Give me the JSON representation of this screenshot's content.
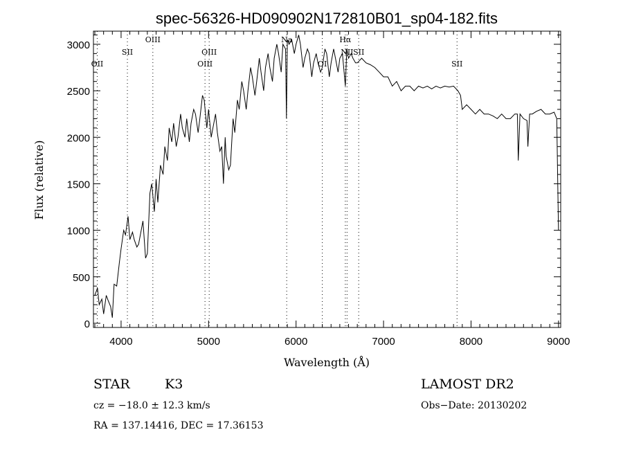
{
  "chart_data": {
    "type": "line",
    "title": "spec-56326-HD090902N172810B01_sp04-182.fits",
    "xlabel": "Wavelength (Å)",
    "ylabel": "Flux (relative)",
    "xlim": [
      3684,
      9025
    ],
    "ylim": [
      -45,
      3141
    ],
    "xticks": [
      "4000",
      "5000",
      "6000",
      "7000",
      "8000",
      "9000"
    ],
    "yticks": [
      "0",
      "500",
      "1000",
      "1500",
      "2000",
      "2500",
      "3000"
    ],
    "grid": false,
    "series": [
      {
        "name": "spectrum",
        "x": [
          3700,
          3730,
          3750,
          3780,
          3800,
          3830,
          3850,
          3880,
          3900,
          3920,
          3950,
          3980,
          4000,
          4030,
          4050,
          4080,
          4100,
          4130,
          4150,
          4180,
          4200,
          4230,
          4250,
          4280,
          4300,
          4330,
          4350,
          4380,
          4400,
          4420,
          4450,
          4480,
          4500,
          4530,
          4550,
          4580,
          4600,
          4630,
          4650,
          4680,
          4700,
          4730,
          4750,
          4780,
          4800,
          4830,
          4850,
          4880,
          4900,
          4930,
          4950,
          4980,
          5000,
          5030,
          5050,
          5080,
          5100,
          5130,
          5150,
          5170,
          5190,
          5200,
          5230,
          5250,
          5280,
          5300,
          5330,
          5350,
          5380,
          5400,
          5430,
          5450,
          5480,
          5500,
          5530,
          5550,
          5580,
          5600,
          5630,
          5650,
          5680,
          5700,
          5730,
          5750,
          5780,
          5800,
          5830,
          5850,
          5880,
          5890,
          5900,
          5920,
          5950,
          5980,
          6000,
          6030,
          6050,
          6080,
          6100,
          6130,
          6150,
          6180,
          6200,
          6230,
          6250,
          6280,
          6300,
          6330,
          6350,
          6380,
          6400,
          6430,
          6450,
          6480,
          6500,
          6530,
          6563,
          6580,
          6600,
          6630,
          6650,
          6680,
          6700,
          6750,
          6800,
          6850,
          6900,
          6950,
          7000,
          7050,
          7100,
          7150,
          7200,
          7250,
          7300,
          7350,
          7400,
          7450,
          7500,
          7550,
          7600,
          7650,
          7700,
          7750,
          7800,
          7850,
          7880,
          7900,
          7950,
          8000,
          8050,
          8100,
          8150,
          8200,
          8250,
          8300,
          8350,
          8400,
          8450,
          8500,
          8530,
          8540,
          8560,
          8600,
          8640,
          8650,
          8670,
          8700,
          8750,
          8800,
          8850,
          8900,
          8950,
          8980,
          9000
        ],
        "y": [
          300,
          380,
          200,
          260,
          100,
          300,
          250,
          180,
          60,
          420,
          400,
          650,
          800,
          1000,
          950,
          1150,
          900,
          980,
          900,
          820,
          850,
          1000,
          1100,
          700,
          750,
          1400,
          1500,
          1200,
          1550,
          1300,
          1700,
          1600,
          1900,
          1750,
          2100,
          1950,
          2150,
          1900,
          2000,
          2250,
          2100,
          2000,
          2200,
          1950,
          2150,
          2300,
          2250,
          2050,
          2200,
          2450,
          2400,
          2100,
          2300,
          2000,
          2100,
          2250,
          2050,
          1850,
          1900,
          1500,
          2000,
          1800,
          1650,
          1700,
          2200,
          2050,
          2400,
          2300,
          2600,
          2500,
          2300,
          2500,
          2750,
          2650,
          2450,
          2600,
          2850,
          2700,
          2500,
          2750,
          2900,
          2750,
          2600,
          2850,
          3000,
          2900,
          2700,
          3000,
          2950,
          2200,
          3050,
          3000,
          3050,
          2900,
          3000,
          3100,
          3000,
          2750,
          2850,
          2950,
          2900,
          2650,
          2800,
          2900,
          2800,
          2700,
          2750,
          2950,
          2900,
          2650,
          2800,
          2950,
          2850,
          2700,
          2850,
          2900,
          2550,
          2950,
          2850,
          2900,
          2850,
          2800,
          2800,
          2850,
          2800,
          2780,
          2750,
          2700,
          2650,
          2650,
          2550,
          2600,
          2500,
          2550,
          2550,
          2500,
          2550,
          2530,
          2550,
          2520,
          2550,
          2530,
          2550,
          2540,
          2550,
          2500,
          2450,
          2300,
          2350,
          2300,
          2250,
          2300,
          2250,
          2250,
          2230,
          2200,
          2250,
          2200,
          2200,
          2250,
          2250,
          1750,
          2250,
          2200,
          2180,
          1900,
          2250,
          2250,
          2280,
          2300,
          2250,
          2250,
          2270,
          2200,
          1000
        ]
      }
    ],
    "line_markers": [
      {
        "label": "OII",
        "wavelength": 3727
      },
      {
        "label": "SII",
        "wavelength": 4072
      },
      {
        "label": "OIII",
        "wavelength": 4363
      },
      {
        "label": "OIII",
        "wavelength": 4959
      },
      {
        "label": "OIII",
        "wavelength": 5007
      },
      {
        "label": "Na",
        "wavelength": 5893
      },
      {
        "label": "OI",
        "wavelength": 6300
      },
      {
        "label": "Hα",
        "wavelength": 6563
      },
      {
        "label": "NII",
        "wavelength": 6583
      },
      {
        "label": "SII",
        "wavelength": 6716
      },
      {
        "label": "SII",
        "wavelength": 7840
      }
    ]
  },
  "info": {
    "class": "STAR",
    "subclass": "K3",
    "survey": "LAMOST DR2",
    "cz": "cz = −18.0 ± 12.3 km/s",
    "obs_date": "Obs−Date: 20130202",
    "coords": "RA = 137.14416, DEC =  17.36153"
  }
}
